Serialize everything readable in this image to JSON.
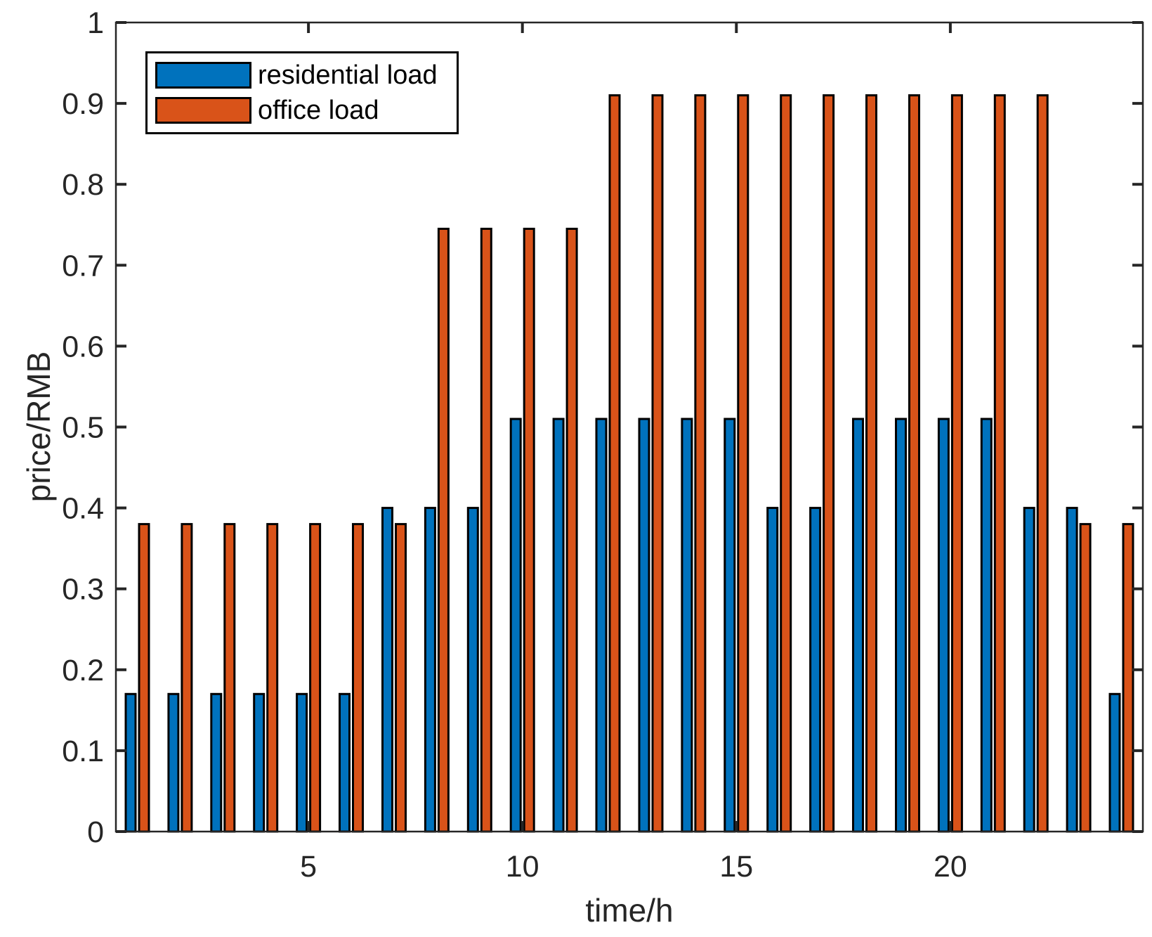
{
  "figure": {
    "background": "#ffffff"
  },
  "chart_data": {
    "type": "bar",
    "title": "",
    "xlabel": "time/h",
    "ylabel": "price/RMB",
    "categories": [
      1,
      2,
      3,
      4,
      5,
      6,
      7,
      8,
      9,
      10,
      11,
      12,
      13,
      14,
      15,
      16,
      17,
      18,
      19,
      20,
      21,
      22,
      23,
      24
    ],
    "series": [
      {
        "name": "residential load",
        "color": "#0072BD",
        "values": [
          0.17,
          0.17,
          0.17,
          0.17,
          0.17,
          0.17,
          0.4,
          0.4,
          0.4,
          0.51,
          0.51,
          0.51,
          0.51,
          0.51,
          0.51,
          0.4,
          0.4,
          0.51,
          0.51,
          0.51,
          0.51,
          0.4,
          0.4,
          0.17
        ]
      },
      {
        "name": "office load",
        "color": "#D95319",
        "values": [
          0.38,
          0.38,
          0.38,
          0.38,
          0.38,
          0.38,
          0.38,
          0.745,
          0.745,
          0.745,
          0.745,
          0.91,
          0.91,
          0.91,
          0.91,
          0.91,
          0.91,
          0.91,
          0.91,
          0.91,
          0.91,
          0.91,
          0.38,
          0.38
        ]
      }
    ],
    "xlim": [
      0.5,
      24.5
    ],
    "ylim": [
      0,
      1
    ],
    "x_ticks": [
      {
        "value": 5,
        "label": "5"
      },
      {
        "value": 10,
        "label": "10"
      },
      {
        "value": 15,
        "label": "15"
      },
      {
        "value": 20,
        "label": "20"
      }
    ],
    "y_ticks": [
      {
        "value": 0.0,
        "label": "0"
      },
      {
        "value": 0.1,
        "label": "0.1"
      },
      {
        "value": 0.2,
        "label": "0.2"
      },
      {
        "value": 0.3,
        "label": "0.3"
      },
      {
        "value": 0.4,
        "label": "0.4"
      },
      {
        "value": 0.5,
        "label": "0.5"
      },
      {
        "value": 0.6,
        "label": "0.6"
      },
      {
        "value": 0.7,
        "label": "0.7"
      },
      {
        "value": 0.8,
        "label": "0.8"
      },
      {
        "value": 0.9,
        "label": "0.9"
      },
      {
        "value": 1.0,
        "label": "1"
      }
    ],
    "grid": false,
    "legend_position": "top-left-inside",
    "bar_edge_color": "#000000",
    "axis_color": "#262626"
  },
  "legend": {
    "items": [
      {
        "label": "residential load"
      },
      {
        "label": "office load"
      }
    ]
  }
}
